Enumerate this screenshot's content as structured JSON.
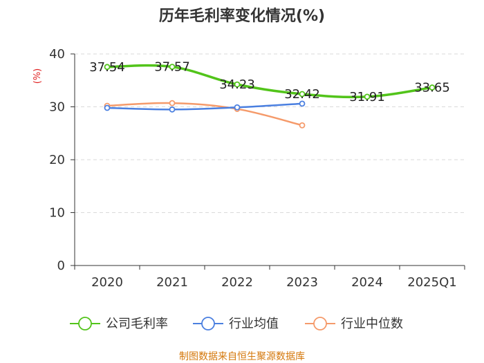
{
  "chart_data": {
    "type": "line",
    "title": "历年毛利率变化情况(%)",
    "ylabel": "(%)",
    "xlabel": "",
    "categories": [
      "2020",
      "2021",
      "2022",
      "2023",
      "2024",
      "2025Q1"
    ],
    "ylim": [
      0,
      40
    ],
    "yticks": [
      0,
      10,
      20,
      30,
      40
    ],
    "grid": true,
    "legend_position": "bottom",
    "series": [
      {
        "name": "公司毛利率",
        "color": "#52c41a",
        "values": [
          37.54,
          37.57,
          34.23,
          32.42,
          31.91,
          33.65
        ],
        "labels": [
          "37.54",
          "37.57",
          "34.23",
          "32.42",
          "31.91",
          "33.65"
        ]
      },
      {
        "name": "行业均值",
        "color": "#4a7fe0",
        "values": [
          29.8,
          29.5,
          29.9,
          30.6,
          null,
          null
        ]
      },
      {
        "name": "行业中位数",
        "color": "#f59a6a",
        "values": [
          30.2,
          30.7,
          29.6,
          26.5,
          null,
          null
        ]
      }
    ]
  },
  "source": "制图数据来自恒生聚源数据库"
}
